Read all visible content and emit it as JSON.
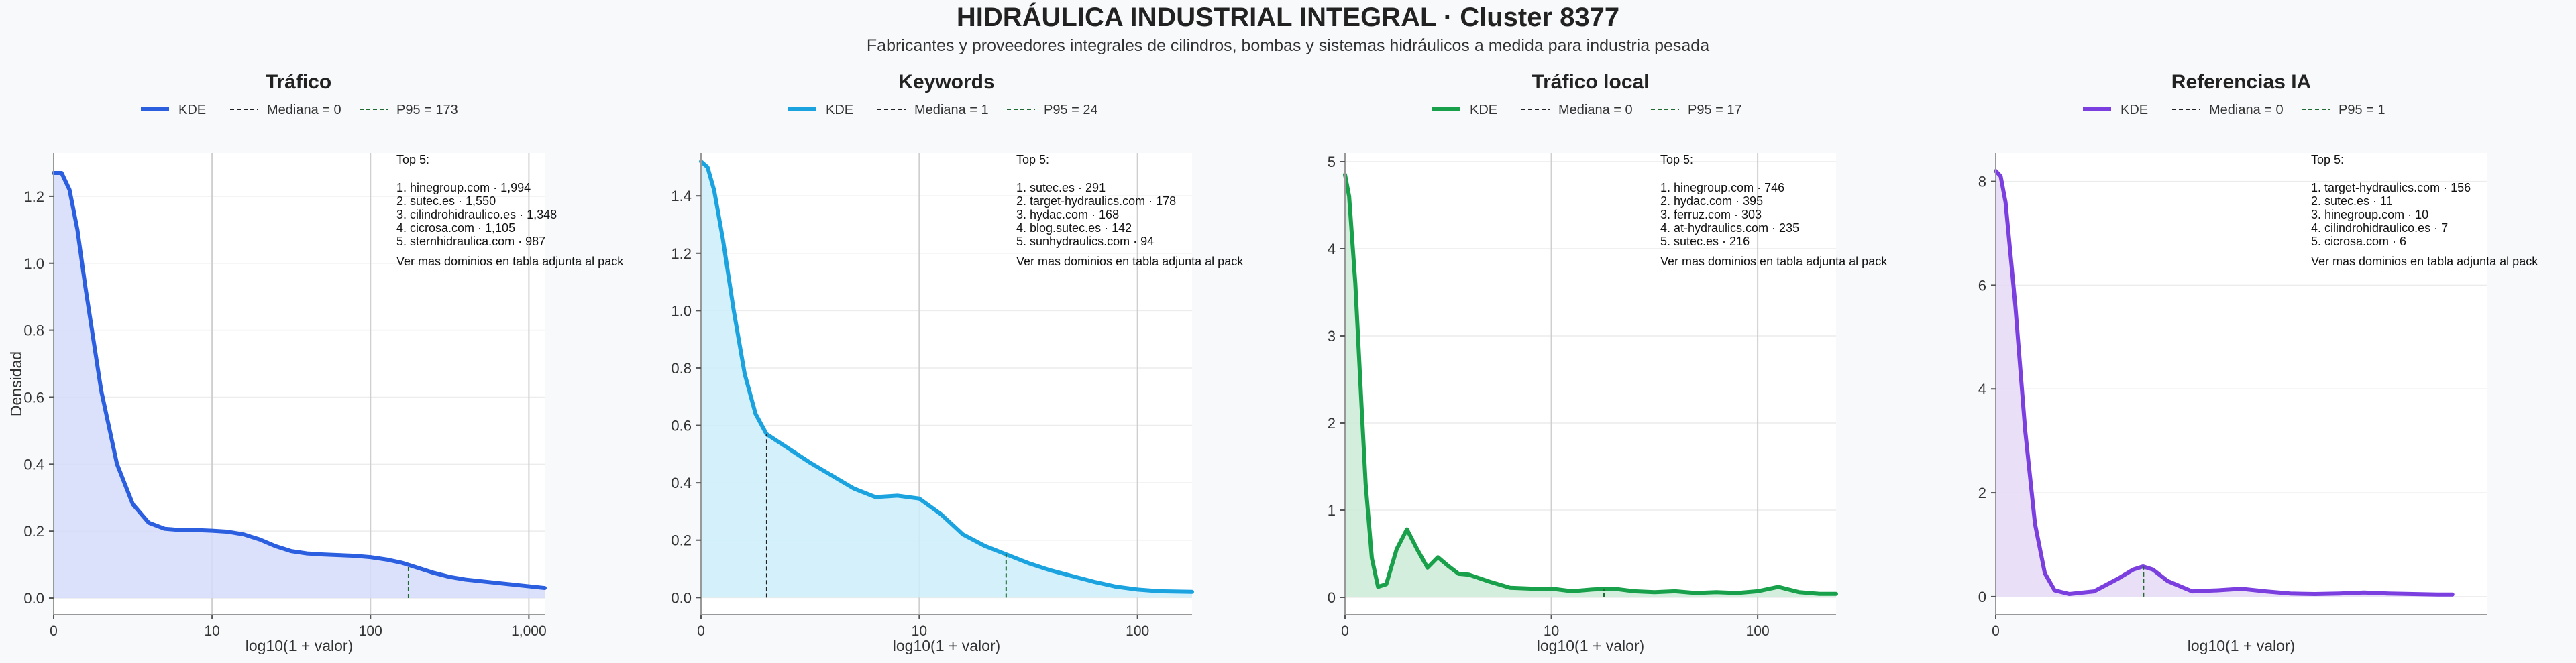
{
  "header": {
    "title": "HIDRÁULICA INDUSTRIAL INTEGRAL · Cluster 8377",
    "subtitle": "Fabricantes y proveedores integrales de cilindros, bombas y sistemas hidráulicos a medida para industria pesada"
  },
  "legend": {
    "kde": "KDE"
  },
  "axes": {
    "xlabel": "log10(1 + valor)",
    "ylabel": "Densidad"
  },
  "chart_data": [
    {
      "type": "area",
      "title": "Tráfico",
      "color": "#2b5fe0",
      "fill": "#d5dcfa",
      "median_label": "Mediana = 0",
      "p95_label": "P95 = 173",
      "median_x": 0,
      "p95_x": 2.24,
      "xlim": [
        0,
        3.1
      ],
      "ylim": [
        -0.05,
        1.33
      ],
      "xticks": [
        0,
        1,
        2,
        3
      ],
      "xticklabels": [
        "0",
        "10",
        "100",
        "1,000"
      ],
      "yticks": [
        0,
        0.2,
        0.4,
        0.6,
        0.8,
        1.0,
        1.2
      ],
      "yticklabels": [
        "0.0",
        "0.2",
        "0.4",
        "0.6",
        "0.8",
        "1.0",
        "1.2"
      ],
      "x": [
        0,
        0.05,
        0.1,
        0.15,
        0.2,
        0.3,
        0.4,
        0.5,
        0.6,
        0.7,
        0.8,
        0.9,
        1.0,
        1.1,
        1.2,
        1.3,
        1.4,
        1.5,
        1.6,
        1.7,
        1.8,
        1.9,
        2.0,
        2.1,
        2.2,
        2.3,
        2.4,
        2.5,
        2.6,
        2.7,
        2.8,
        2.9,
        3.0,
        3.1
      ],
      "y": [
        1.27,
        1.27,
        1.22,
        1.1,
        0.93,
        0.62,
        0.4,
        0.28,
        0.225,
        0.207,
        0.203,
        0.203,
        0.201,
        0.198,
        0.19,
        0.175,
        0.155,
        0.14,
        0.133,
        0.13,
        0.128,
        0.126,
        0.122,
        0.115,
        0.105,
        0.09,
        0.075,
        0.063,
        0.055,
        0.05,
        0.045,
        0.04,
        0.035,
        0.03
      ],
      "top5_title": "Top 5:",
      "top5": [
        "1. hinegroup.com · 1,994",
        "2. sutec.es · 1,550",
        "3. cilindrohidraulico.es · 1,348",
        "4. cicrosa.com · 1,105",
        "5. sternhidraulica.com · 987"
      ],
      "more_note": "Ver mas dominios en tabla adjunta al pack"
    },
    {
      "type": "area",
      "title": "Keywords",
      "color": "#1ba3e0",
      "fill": "#cdeefa",
      "median_label": "Mediana = 1",
      "p95_label": "P95 = 24",
      "median_x": 0.301,
      "p95_x": 1.398,
      "xlim": [
        0,
        2.25
      ],
      "ylim": [
        -0.06,
        1.55
      ],
      "xticks": [
        0,
        1,
        2
      ],
      "xticklabels": [
        "0",
        "10",
        "100"
      ],
      "yticks": [
        0,
        0.2,
        0.4,
        0.6,
        0.8,
        1.0,
        1.2,
        1.4
      ],
      "yticklabels": [
        "0.0",
        "0.2",
        "0.4",
        "0.6",
        "0.8",
        "1.0",
        "1.2",
        "1.4"
      ],
      "x": [
        0,
        0.03,
        0.06,
        0.1,
        0.15,
        0.2,
        0.25,
        0.3,
        0.4,
        0.5,
        0.6,
        0.7,
        0.8,
        0.9,
        1.0,
        1.1,
        1.2,
        1.3,
        1.4,
        1.5,
        1.6,
        1.7,
        1.8,
        1.9,
        2.0,
        2.1,
        2.25
      ],
      "y": [
        1.52,
        1.5,
        1.42,
        1.25,
        1.0,
        0.78,
        0.64,
        0.57,
        0.52,
        0.47,
        0.425,
        0.38,
        0.35,
        0.355,
        0.345,
        0.29,
        0.22,
        0.18,
        0.15,
        0.12,
        0.095,
        0.075,
        0.055,
        0.038,
        0.028,
        0.022,
        0.02
      ],
      "top5_title": "Top 5:",
      "top5": [
        "1. sutec.es · 291",
        "2. target-hydraulics.com · 178",
        "3. hydac.com · 168",
        "4. blog.sutec.es · 142",
        "5. sunhydraulics.com · 94"
      ],
      "more_note": "Ver mas dominios en tabla adjunta al pack"
    },
    {
      "type": "area",
      "title": "Tráfico local",
      "color": "#18a04a",
      "fill": "#cdebd7",
      "median_label": "Mediana = 0",
      "p95_label": "P95 = 17",
      "median_x": 0,
      "p95_x": 1.255,
      "xlim": [
        0,
        2.38
      ],
      "ylim": [
        -0.2,
        5.1
      ],
      "xticks": [
        0,
        1,
        2
      ],
      "xticklabels": [
        "0",
        "10",
        "100"
      ],
      "yticks": [
        0,
        1,
        2,
        3,
        4,
        5
      ],
      "yticklabels": [
        "0",
        "1",
        "2",
        "3",
        "4",
        "5"
      ],
      "x": [
        0,
        0.02,
        0.05,
        0.08,
        0.1,
        0.13,
        0.16,
        0.2,
        0.25,
        0.3,
        0.35,
        0.4,
        0.45,
        0.5,
        0.55,
        0.6,
        0.7,
        0.8,
        0.9,
        1.0,
        1.1,
        1.2,
        1.3,
        1.4,
        1.5,
        1.6,
        1.7,
        1.8,
        1.9,
        2.0,
        2.1,
        2.2,
        2.3,
        2.38
      ],
      "y": [
        4.85,
        4.6,
        3.6,
        2.2,
        1.3,
        0.45,
        0.12,
        0.15,
        0.55,
        0.78,
        0.55,
        0.34,
        0.46,
        0.36,
        0.27,
        0.26,
        0.18,
        0.11,
        0.1,
        0.1,
        0.07,
        0.09,
        0.1,
        0.07,
        0.06,
        0.07,
        0.05,
        0.06,
        0.05,
        0.07,
        0.12,
        0.06,
        0.04,
        0.04
      ],
      "top5_title": "Top 5:",
      "top5": [
        "1. hinegroup.com · 746",
        "2. hydac.com · 395",
        "3. ferruz.com · 303",
        "4. at-hydraulics.com · 235",
        "5. sutec.es · 216"
      ],
      "more_note": "Ver mas dominios en tabla adjunta al pack"
    },
    {
      "type": "area",
      "title": "Referencias IA",
      "color": "#7b3fe0",
      "fill": "#e5dbf7",
      "median_label": "Mediana = 0",
      "p95_label": "P95 = 1",
      "median_x": 0,
      "p95_x": 0.301,
      "xlim": [
        0,
        1.0
      ],
      "ylim": [
        -0.35,
        8.55
      ],
      "xticks": [
        0
      ],
      "xticklabels": [
        "0"
      ],
      "yticks": [
        0,
        2,
        4,
        6,
        8
      ],
      "yticklabels": [
        "0",
        "2",
        "4",
        "6",
        "8"
      ],
      "x": [
        0,
        0.01,
        0.02,
        0.04,
        0.06,
        0.08,
        0.1,
        0.12,
        0.15,
        0.2,
        0.25,
        0.28,
        0.3,
        0.32,
        0.35,
        0.4,
        0.45,
        0.5,
        0.55,
        0.6,
        0.65,
        0.7,
        0.75,
        0.8,
        0.85,
        0.9,
        0.93
      ],
      "y": [
        8.2,
        8.1,
        7.6,
        5.6,
        3.2,
        1.4,
        0.45,
        0.12,
        0.05,
        0.1,
        0.35,
        0.52,
        0.58,
        0.52,
        0.3,
        0.1,
        0.12,
        0.15,
        0.1,
        0.06,
        0.05,
        0.06,
        0.08,
        0.06,
        0.05,
        0.04,
        0.04
      ],
      "top5_title": "Top 5:",
      "top5": [
        "1. target-hydraulics.com · 156",
        "2. sutec.es · 11",
        "3. hinegroup.com · 10",
        "4. cilindrohidraulico.es · 7",
        "5. cicrosa.com · 6"
      ],
      "more_note": "Ver mas dominios en tabla adjunta al pack"
    }
  ]
}
